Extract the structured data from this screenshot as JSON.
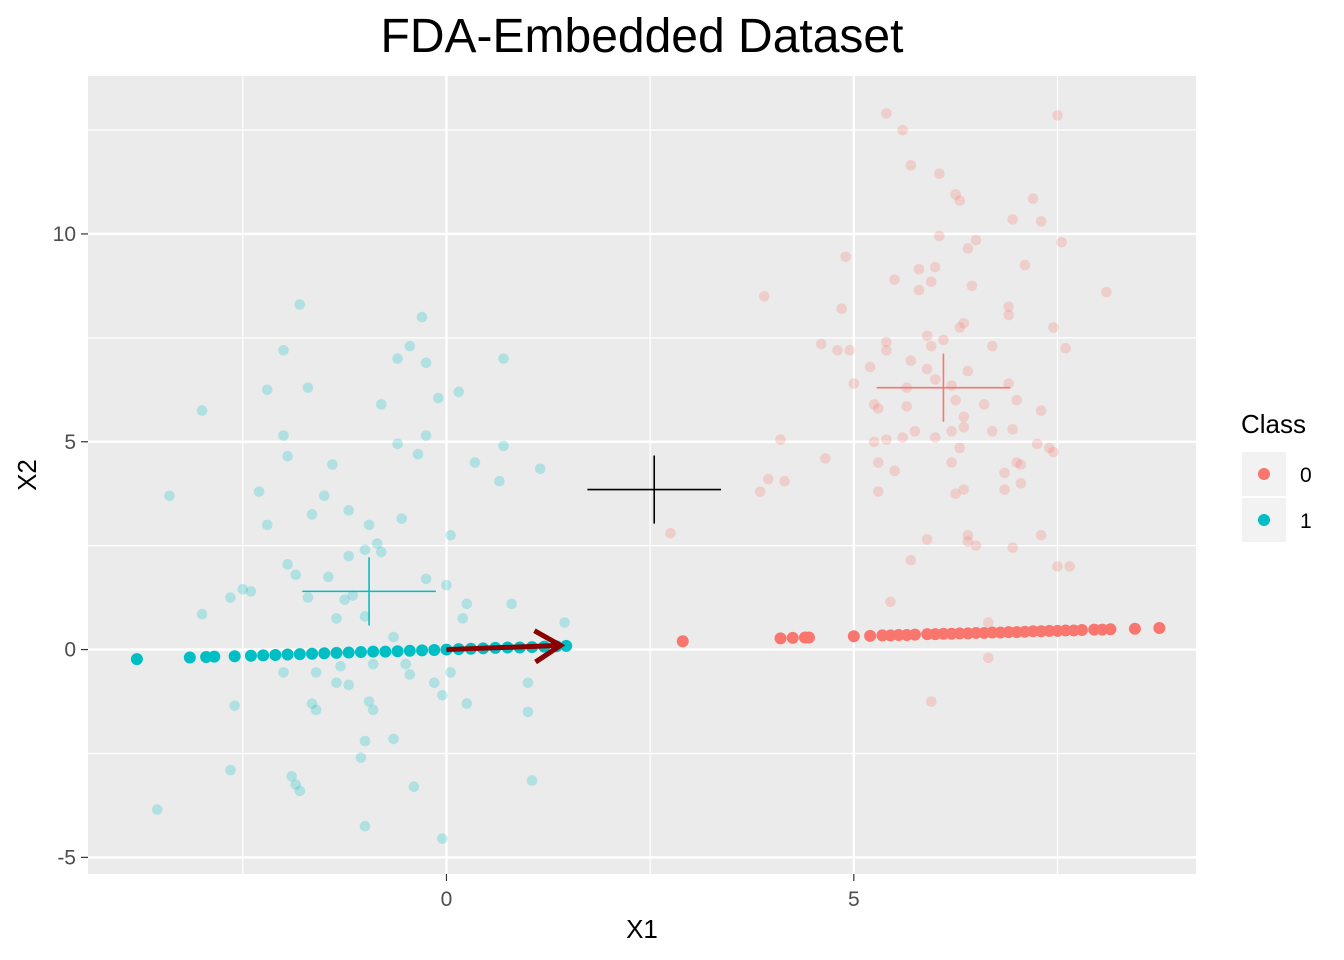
{
  "chart_data": {
    "type": "scatter",
    "title": "FDA-Embedded Dataset",
    "xlabel": "X1",
    "ylabel": "X2",
    "xlim": [
      -4.4,
      9.2
    ],
    "ylim": [
      -5.4,
      13.8
    ],
    "x_ticks": [
      0,
      5
    ],
    "y_ticks": [
      -5,
      0,
      5,
      10
    ],
    "grid": true,
    "legend": {
      "title": "Class",
      "placement": "right",
      "entries": [
        "0",
        "1"
      ]
    },
    "colors": {
      "0": "#F8766D",
      "1": "#00BFC4",
      "arrow": "#8B0000",
      "overall_mean": "#000000",
      "panel": "#EBEBEB",
      "grid": "#FFFFFF"
    },
    "series": [
      {
        "name": "0",
        "kind": "original",
        "opacity": 0.25,
        "points": [
          [
            5.4,
            12.9
          ],
          [
            5.6,
            12.5
          ],
          [
            7.5,
            12.85
          ],
          [
            5.7,
            11.65
          ],
          [
            6.05,
            11.45
          ],
          [
            6.25,
            10.95
          ],
          [
            6.3,
            10.8
          ],
          [
            7.2,
            10.85
          ],
          [
            6.95,
            10.35
          ],
          [
            7.3,
            10.3
          ],
          [
            6.05,
            9.95
          ],
          [
            6.5,
            9.85
          ],
          [
            7.55,
            9.8
          ],
          [
            4.9,
            9.45
          ],
          [
            5.8,
            9.15
          ],
          [
            6.0,
            9.2
          ],
          [
            6.4,
            9.65
          ],
          [
            7.1,
            9.25
          ],
          [
            5.5,
            8.9
          ],
          [
            5.95,
            8.85
          ],
          [
            5.8,
            8.65
          ],
          [
            6.45,
            8.75
          ],
          [
            3.9,
            8.5
          ],
          [
            8.1,
            8.6
          ],
          [
            4.85,
            8.2
          ],
          [
            6.9,
            8.25
          ],
          [
            6.9,
            8.05
          ],
          [
            6.3,
            7.75
          ],
          [
            6.35,
            7.85
          ],
          [
            5.9,
            7.55
          ],
          [
            7.45,
            7.75
          ],
          [
            5.4,
            7.4
          ],
          [
            6.1,
            7.45
          ],
          [
            4.6,
            7.35
          ],
          [
            4.8,
            7.2
          ],
          [
            4.95,
            7.2
          ],
          [
            5.4,
            7.2
          ],
          [
            5.95,
            7.3
          ],
          [
            6.7,
            7.3
          ],
          [
            7.6,
            7.25
          ],
          [
            5.7,
            6.95
          ],
          [
            5.2,
            6.8
          ],
          [
            5.9,
            6.75
          ],
          [
            6.4,
            6.7
          ],
          [
            6.0,
            6.5
          ],
          [
            5.65,
            6.3
          ],
          [
            5.0,
            6.4
          ],
          [
            6.2,
            6.35
          ],
          [
            6.25,
            6.0
          ],
          [
            6.9,
            6.4
          ],
          [
            7.0,
            6.0
          ],
          [
            5.25,
            5.9
          ],
          [
            5.3,
            5.8
          ],
          [
            5.65,
            5.85
          ],
          [
            6.35,
            5.6
          ],
          [
            6.6,
            5.9
          ],
          [
            7.3,
            5.75
          ],
          [
            5.75,
            5.25
          ],
          [
            6.0,
            5.1
          ],
          [
            6.2,
            5.25
          ],
          [
            6.35,
            5.35
          ],
          [
            6.7,
            5.25
          ],
          [
            6.95,
            5.3
          ],
          [
            5.25,
            5.0
          ],
          [
            5.4,
            5.05
          ],
          [
            5.6,
            5.1
          ],
          [
            4.1,
            5.05
          ],
          [
            6.3,
            4.85
          ],
          [
            7.25,
            4.95
          ],
          [
            7.4,
            4.85
          ],
          [
            7.45,
            4.75
          ],
          [
            4.65,
            4.6
          ],
          [
            5.3,
            4.5
          ],
          [
            6.2,
            4.5
          ],
          [
            5.5,
            4.3
          ],
          [
            7.0,
            4.5
          ],
          [
            7.05,
            4.45
          ],
          [
            3.95,
            4.1
          ],
          [
            4.15,
            4.05
          ],
          [
            6.85,
            4.25
          ],
          [
            3.85,
            3.8
          ],
          [
            5.3,
            3.8
          ],
          [
            6.25,
            3.75
          ],
          [
            6.35,
            3.85
          ],
          [
            6.85,
            3.85
          ],
          [
            7.05,
            4.0
          ],
          [
            2.75,
            2.8
          ],
          [
            6.4,
            2.75
          ],
          [
            7.3,
            2.75
          ],
          [
            5.9,
            2.65
          ],
          [
            6.4,
            2.6
          ],
          [
            6.5,
            2.5
          ],
          [
            6.95,
            2.45
          ],
          [
            7.5,
            2.0
          ],
          [
            7.65,
            2.0
          ],
          [
            5.7,
            2.15
          ],
          [
            5.45,
            1.15
          ],
          [
            6.65,
            0.65
          ],
          [
            6.65,
            -0.2
          ],
          [
            5.95,
            -1.25
          ]
        ]
      },
      {
        "name": "1",
        "kind": "original",
        "opacity": 0.25,
        "points": [
          [
            -1.8,
            8.3
          ],
          [
            -0.3,
            8.0
          ],
          [
            -2.0,
            7.2
          ],
          [
            -0.45,
            7.3
          ],
          [
            -0.6,
            7.0
          ],
          [
            0.7,
            7.0
          ],
          [
            -0.25,
            6.9
          ],
          [
            -1.7,
            6.3
          ],
          [
            -2.2,
            6.25
          ],
          [
            -3.0,
            5.75
          ],
          [
            -0.8,
            5.9
          ],
          [
            -0.1,
            6.05
          ],
          [
            0.15,
            6.2
          ],
          [
            -2.0,
            5.15
          ],
          [
            -0.25,
            5.15
          ],
          [
            -0.6,
            4.95
          ],
          [
            0.7,
            4.9
          ],
          [
            -1.95,
            4.65
          ],
          [
            -0.35,
            4.7
          ],
          [
            -1.4,
            4.45
          ],
          [
            0.35,
            4.5
          ],
          [
            1.15,
            4.35
          ],
          [
            0.65,
            4.05
          ],
          [
            -3.4,
            3.7
          ],
          [
            -2.3,
            3.8
          ],
          [
            -1.5,
            3.7
          ],
          [
            -1.65,
            3.25
          ],
          [
            -1.2,
            3.35
          ],
          [
            -0.55,
            3.15
          ],
          [
            -2.2,
            3.0
          ],
          [
            -0.95,
            3.0
          ],
          [
            0.05,
            2.75
          ],
          [
            -0.85,
            2.55
          ],
          [
            -0.8,
            2.35
          ],
          [
            -1.2,
            2.25
          ],
          [
            -1.0,
            2.4
          ],
          [
            -1.95,
            2.05
          ],
          [
            -1.85,
            1.8
          ],
          [
            -1.45,
            1.75
          ],
          [
            -0.25,
            1.7
          ],
          [
            0.0,
            1.55
          ],
          [
            -2.5,
            1.45
          ],
          [
            -2.4,
            1.4
          ],
          [
            -2.65,
            1.25
          ],
          [
            -1.7,
            1.25
          ],
          [
            -1.25,
            1.2
          ],
          [
            -1.15,
            1.3
          ],
          [
            0.25,
            1.1
          ],
          [
            0.8,
            1.1
          ],
          [
            -3.0,
            0.85
          ],
          [
            -1.35,
            0.75
          ],
          [
            -1.0,
            0.8
          ],
          [
            0.2,
            0.75
          ],
          [
            1.45,
            0.65
          ],
          [
            -0.65,
            0.3
          ],
          [
            -2.0,
            -0.55
          ],
          [
            -1.6,
            -0.55
          ],
          [
            -1.3,
            -0.4
          ],
          [
            -0.9,
            -0.35
          ],
          [
            -0.45,
            -0.6
          ],
          [
            -0.5,
            -0.35
          ],
          [
            0.05,
            -0.55
          ],
          [
            -1.35,
            -0.8
          ],
          [
            -1.2,
            -0.85
          ],
          [
            -0.15,
            -0.8
          ],
          [
            -0.05,
            -1.1
          ],
          [
            1.0,
            -0.8
          ],
          [
            -1.65,
            -1.3
          ],
          [
            -1.6,
            -1.45
          ],
          [
            -0.95,
            -1.25
          ],
          [
            -0.9,
            -1.45
          ],
          [
            0.25,
            -1.3
          ],
          [
            1.0,
            -1.5
          ],
          [
            -2.6,
            -1.35
          ],
          [
            -1.0,
            -2.2
          ],
          [
            -0.65,
            -2.15
          ],
          [
            -1.05,
            -2.6
          ],
          [
            -2.65,
            -2.9
          ],
          [
            -1.9,
            -3.05
          ],
          [
            -1.85,
            -3.25
          ],
          [
            -1.8,
            -3.4
          ],
          [
            -0.4,
            -3.3
          ],
          [
            1.05,
            -3.15
          ],
          [
            -3.55,
            -3.85
          ],
          [
            -1.0,
            -4.25
          ],
          [
            -0.05,
            -4.55
          ]
        ]
      },
      {
        "name": "0",
        "kind": "fda-embedded",
        "opacity": 1,
        "points": [
          [
            2.9,
            0.2
          ],
          [
            4.1,
            0.27
          ],
          [
            4.25,
            0.28
          ],
          [
            4.4,
            0.29
          ],
          [
            4.45,
            0.29
          ],
          [
            5.0,
            0.32
          ],
          [
            5.2,
            0.33
          ],
          [
            5.35,
            0.34
          ],
          [
            5.45,
            0.34
          ],
          [
            5.55,
            0.35
          ],
          [
            5.65,
            0.35
          ],
          [
            5.75,
            0.36
          ],
          [
            5.9,
            0.37
          ],
          [
            6.0,
            0.37
          ],
          [
            6.1,
            0.38
          ],
          [
            6.2,
            0.38
          ],
          [
            6.3,
            0.39
          ],
          [
            6.4,
            0.39
          ],
          [
            6.5,
            0.4
          ],
          [
            6.6,
            0.4
          ],
          [
            6.7,
            0.41
          ],
          [
            6.8,
            0.41
          ],
          [
            6.9,
            0.42
          ],
          [
            7.0,
            0.42
          ],
          [
            7.1,
            0.43
          ],
          [
            7.2,
            0.44
          ],
          [
            7.3,
            0.44
          ],
          [
            7.4,
            0.45
          ],
          [
            7.5,
            0.45
          ],
          [
            7.6,
            0.46
          ],
          [
            7.7,
            0.46
          ],
          [
            7.8,
            0.47
          ],
          [
            7.95,
            0.48
          ],
          [
            8.05,
            0.48
          ],
          [
            8.15,
            0.49
          ],
          [
            8.45,
            0.5
          ],
          [
            8.75,
            0.52
          ]
        ]
      },
      {
        "name": "1",
        "kind": "fda-embedded",
        "opacity": 1,
        "points": [
          [
            -3.8,
            -0.23
          ],
          [
            -3.15,
            -0.19
          ],
          [
            -2.95,
            -0.18
          ],
          [
            -2.85,
            -0.17
          ],
          [
            -2.6,
            -0.16
          ],
          [
            -2.4,
            -0.15
          ],
          [
            -2.25,
            -0.14
          ],
          [
            -2.1,
            -0.13
          ],
          [
            -1.95,
            -0.12
          ],
          [
            -1.8,
            -0.11
          ],
          [
            -1.65,
            -0.1
          ],
          [
            -1.5,
            -0.09
          ],
          [
            -1.35,
            -0.08
          ],
          [
            -1.2,
            -0.07
          ],
          [
            -1.05,
            -0.06
          ],
          [
            -0.9,
            -0.05
          ],
          [
            -0.75,
            -0.05
          ],
          [
            -0.6,
            -0.04
          ],
          [
            -0.45,
            -0.03
          ],
          [
            -0.3,
            -0.02
          ],
          [
            -0.15,
            -0.01
          ],
          [
            0.0,
            0.0
          ],
          [
            0.15,
            0.01
          ],
          [
            0.3,
            0.02
          ],
          [
            0.45,
            0.03
          ],
          [
            0.6,
            0.04
          ],
          [
            0.75,
            0.05
          ],
          [
            0.9,
            0.05
          ],
          [
            1.05,
            0.06
          ],
          [
            1.2,
            0.07
          ],
          [
            1.35,
            0.08
          ],
          [
            1.47,
            0.09
          ]
        ]
      }
    ],
    "class_means": [
      {
        "name": "0",
        "x": 6.1,
        "y": 6.3
      },
      {
        "name": "1",
        "x": -0.95,
        "y": 1.4
      }
    ],
    "overall_mean": {
      "x": 2.55,
      "y": 3.85
    },
    "discriminant_arrow": {
      "from": [
        0,
        0
      ],
      "to": [
        1.4,
        0.1
      ]
    }
  }
}
